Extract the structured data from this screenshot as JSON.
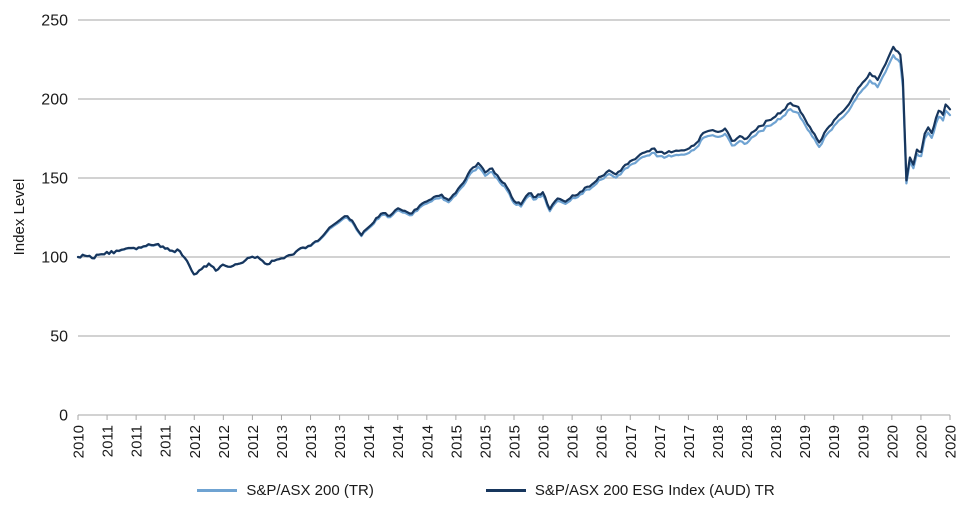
{
  "chart_data": {
    "type": "line",
    "title": "",
    "xlabel": "",
    "ylabel": "Index Level",
    "ylim": [
      0,
      250
    ],
    "yticks": [
      0,
      50,
      100,
      150,
      200,
      250
    ],
    "x_tick_labels": [
      "2010",
      "2011",
      "2011",
      "2011",
      "2012",
      "2012",
      "2012",
      "2013",
      "2013",
      "2013",
      "2014",
      "2014",
      "2014",
      "2015",
      "2015",
      "2015",
      "2016",
      "2016",
      "2016",
      "2017",
      "2017",
      "2017",
      "2018",
      "2018",
      "2018",
      "2019",
      "2019",
      "2019",
      "2020",
      "2020",
      "2020"
    ],
    "grid": "horizontal",
    "legend_position": "bottom",
    "background_color": "#FFFFFF",
    "axis_color": "#A6A6A6",
    "text_color": "#1A1A1A",
    "x": [
      0.0,
      0.008,
      0.016,
      0.024,
      0.033,
      0.041,
      0.05,
      0.058,
      0.067,
      0.075,
      0.084,
      0.092,
      0.1,
      0.108,
      0.117,
      0.125,
      0.133,
      0.142,
      0.15,
      0.158,
      0.166,
      0.175,
      0.183,
      0.192,
      0.2,
      0.209,
      0.217,
      0.225,
      0.233,
      0.242,
      0.25,
      0.258,
      0.267,
      0.275,
      0.283,
      0.291,
      0.3,
      0.309,
      0.317,
      0.325,
      0.334,
      0.342,
      0.35,
      0.358,
      0.367,
      0.375,
      0.383,
      0.392,
      0.4,
      0.408,
      0.417,
      0.425,
      0.433,
      0.442,
      0.45,
      0.459,
      0.467,
      0.475,
      0.484,
      0.492,
      0.5,
      0.508,
      0.517,
      0.525,
      0.533,
      0.541,
      0.55,
      0.559,
      0.567,
      0.576,
      0.584,
      0.592,
      0.6,
      0.609,
      0.617,
      0.625,
      0.633,
      0.642,
      0.65,
      0.658,
      0.667,
      0.675,
      0.683,
      0.692,
      0.701,
      0.709,
      0.717,
      0.725,
      0.734,
      0.742,
      0.75,
      0.759,
      0.767,
      0.775,
      0.783,
      0.792,
      0.8,
      0.808,
      0.817,
      0.826,
      0.834,
      0.842,
      0.85,
      0.859,
      0.867,
      0.875,
      0.884,
      0.892,
      0.9,
      0.908,
      0.917,
      0.926,
      0.935,
      0.943,
      0.946,
      0.95,
      0.954,
      0.958,
      0.962,
      0.967,
      0.971,
      0.975,
      0.979,
      0.984,
      0.987,
      0.992,
      0.995,
      1.0
    ],
    "series": [
      {
        "name": "S&P/ASX 200 (TR)",
        "color": "#6FA3D2",
        "values": [
          100,
          100.8,
          99.3,
          101.4,
          103.1,
          102.3,
          104.4,
          105.5,
          104.8,
          106.5,
          107.3,
          107.9,
          105.1,
          103.8,
          103.5,
          97.5,
          89.0,
          92.5,
          95.8,
          91.3,
          95.2,
          93.8,
          95.5,
          97.9,
          100.2,
          98.6,
          95.4,
          97.6,
          99.1,
          101.2,
          103.3,
          105.8,
          107.0,
          109.8,
          114.2,
          118.8,
          122.3,
          124.8,
          119.9,
          113.2,
          118.4,
          123.6,
          126.7,
          125.2,
          129.6,
          128.0,
          126.5,
          131.3,
          133.8,
          136.5,
          137.9,
          134.6,
          138.9,
          145.1,
          152.8,
          157.1,
          151.4,
          153.8,
          147.0,
          142.2,
          134.1,
          131.9,
          138.7,
          136.5,
          139.4,
          129.0,
          135.5,
          133.6,
          137.4,
          139.6,
          142.7,
          145.1,
          149.0,
          152.6,
          150.2,
          154.5,
          158.1,
          161.0,
          163.6,
          165.8,
          163.8,
          163.4,
          164.1,
          164.8,
          166.0,
          169.1,
          175.4,
          176.8,
          176.0,
          178.0,
          170.6,
          173.4,
          172.0,
          176.3,
          179.7,
          183.0,
          185.4,
          188.8,
          193.6,
          191.2,
          183.5,
          176.3,
          169.6,
          177.8,
          183.0,
          187.4,
          192.6,
          199.8,
          206.1,
          211.8,
          207.5,
          217.1,
          227.7,
          222.9,
          207.5,
          146.6,
          160.5,
          156.2,
          165.3,
          163.8,
          174.9,
          178.7,
          175.4,
          184.5,
          188.8,
          186.4,
          192.6,
          189.8
        ]
      },
      {
        "name": "S&P/ASX 200 ESG Index (AUD) TR",
        "color": "#17365D",
        "values": [
          100,
          100.8,
          99.3,
          101.5,
          103.2,
          102.4,
          104.6,
          105.7,
          105.0,
          106.8,
          107.6,
          108.2,
          105.3,
          104.0,
          103.6,
          97.5,
          89.0,
          92.5,
          95.8,
          91.3,
          95.2,
          93.8,
          95.5,
          97.9,
          100.2,
          98.6,
          95.4,
          97.6,
          99.1,
          101.2,
          103.4,
          106.0,
          107.3,
          110.2,
          114.8,
          119.6,
          123.2,
          125.8,
          120.7,
          113.8,
          119.2,
          124.6,
          127.8,
          126.2,
          130.8,
          129.2,
          127.6,
          132.6,
          135.2,
          138.0,
          139.5,
          136.0,
          140.5,
          147.0,
          155.0,
          159.5,
          153.5,
          156.0,
          149.0,
          144.0,
          135.5,
          133.2,
          140.3,
          138.0,
          141.0,
          130.2,
          137.0,
          135.0,
          139.0,
          141.2,
          144.5,
          147.0,
          151.0,
          154.8,
          152.3,
          156.8,
          160.5,
          163.5,
          166.2,
          168.5,
          166.5,
          166.0,
          166.8,
          167.5,
          168.8,
          172.0,
          178.5,
          180.0,
          179.2,
          181.3,
          173.5,
          176.5,
          175.0,
          179.5,
          183.0,
          186.5,
          189.0,
          192.5,
          197.5,
          195.0,
          187.0,
          179.5,
          172.5,
          181.0,
          186.5,
          191.0,
          196.5,
          204.0,
          210.5,
          216.5,
          212.0,
          222.0,
          233.0,
          228.0,
          212.0,
          148.5,
          163.0,
          158.5,
          168.0,
          166.5,
          178.0,
          182.0,
          178.5,
          188.0,
          192.5,
          190.0,
          196.5,
          193.5
        ]
      }
    ]
  }
}
